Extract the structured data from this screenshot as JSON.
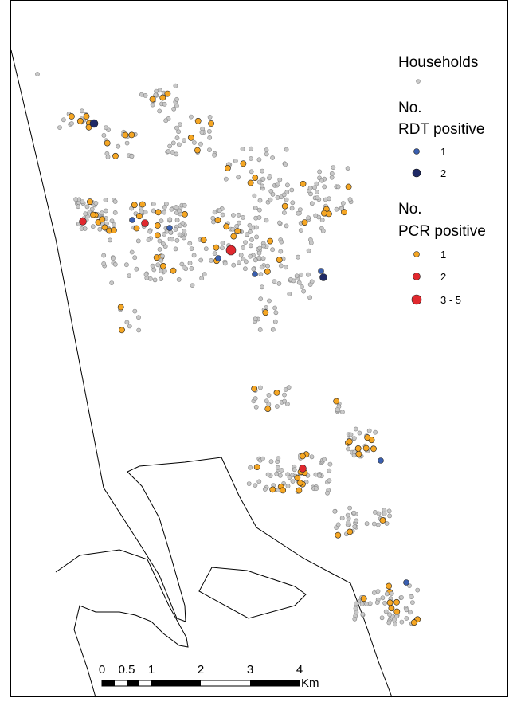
{
  "legend": {
    "households": "Households",
    "rdt": {
      "title": [
        "No.",
        "RDT positive"
      ],
      "entries": [
        "1",
        "2"
      ]
    },
    "pcr": {
      "title": [
        "No.",
        "PCR positive"
      ],
      "entries": [
        "1",
        "2",
        "3 - 5"
      ]
    }
  },
  "scale_bar": {
    "ticks": [
      "0",
      "0.5",
      "1",
      "2",
      "3",
      "4"
    ],
    "unit": "Km"
  }
}
